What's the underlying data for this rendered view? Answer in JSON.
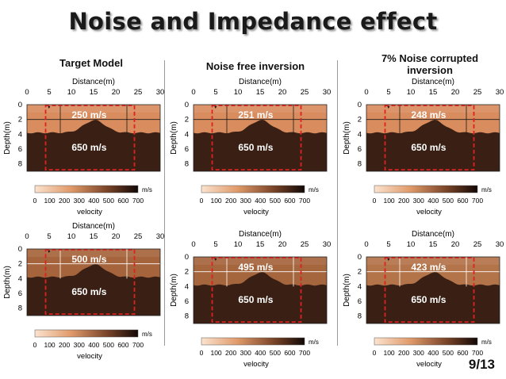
{
  "slide": {
    "title": "Noise and Impedance effect",
    "page": "9/13",
    "columns": [
      {
        "heading": "Target Model"
      },
      {
        "heading": "Noise free inversion"
      },
      {
        "heading_line1": "7% Noise corrupted",
        "heading_line2": "inversion"
      }
    ]
  },
  "axes": {
    "x_title": "Distance(m)",
    "y_title": "Depth(m)",
    "x_ticks": [
      "0",
      "5",
      "10",
      "15",
      "20",
      "25",
      "30"
    ],
    "y_ticks": [
      "0",
      "2",
      "4",
      "6",
      "8"
    ],
    "colorbar_unit": "m/s",
    "colorbar_ticks": [
      "0",
      "100",
      "200",
      "300",
      "400",
      "500",
      "600",
      "700"
    ],
    "colorbar_label": "velocity"
  },
  "colors": {
    "top_layer": "#d98c5e",
    "bottom_layer": "#3a2014",
    "box": "#e02020"
  },
  "chart_data": [
    {
      "type": "heatmap",
      "top_velocity_label": "250 m/s",
      "bottom_velocity_label": "650 m/s",
      "top_velocity": 250,
      "bottom_velocity": 650,
      "xlim": [
        0,
        30
      ],
      "ylim": [
        0,
        9
      ],
      "top_color": "#d98c5e"
    },
    {
      "type": "heatmap",
      "top_velocity_label": "251 m/s",
      "bottom_velocity_label": "650 m/s",
      "top_velocity": 251,
      "bottom_velocity": 650,
      "xlim": [
        0,
        30
      ],
      "ylim": [
        0,
        9
      ],
      "top_color": "#d98c5e"
    },
    {
      "type": "heatmap",
      "top_velocity_label": "248 m/s",
      "bottom_velocity_label": "650 m/s",
      "top_velocity": 248,
      "bottom_velocity": 650,
      "xlim": [
        0,
        30
      ],
      "ylim": [
        0,
        9
      ],
      "top_color": "#d98c5e"
    },
    {
      "type": "heatmap",
      "top_velocity_label": "500 m/s",
      "bottom_velocity_label": "650 m/s",
      "top_velocity": 500,
      "bottom_velocity": 650,
      "xlim": [
        0,
        30
      ],
      "ylim": [
        0,
        9
      ],
      "top_color": "#a5643c"
    },
    {
      "type": "heatmap",
      "top_velocity_label": "495 m/s",
      "bottom_velocity_label": "650 m/s",
      "top_velocity": 495,
      "bottom_velocity": 650,
      "xlim": [
        0,
        30
      ],
      "ylim": [
        0,
        9
      ],
      "top_color": "#a5653d"
    },
    {
      "type": "heatmap",
      "top_velocity_label": "423 m/s",
      "bottom_velocity_label": "650 m/s",
      "top_velocity": 423,
      "bottom_velocity": 650,
      "xlim": [
        0,
        30
      ],
      "ylim": [
        0,
        9
      ],
      "top_color": "#b4744a"
    }
  ]
}
